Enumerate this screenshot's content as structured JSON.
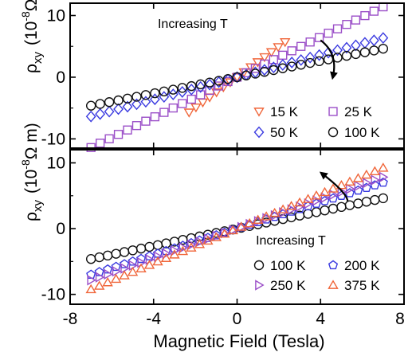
{
  "chart_data": [
    {
      "type": "scatter",
      "panel": "top",
      "xlabel": "Magnetic Field (Tesla)",
      "ylabel_parts": {
        "rho": "ρ",
        "sub": "xy",
        "open": "(10",
        "exp": "-8",
        "unit": "Ω m)"
      },
      "xlim": [
        -8,
        8
      ],
      "ylim": [
        -11.5,
        12
      ],
      "x_ticks": [
        "-8",
        "-4",
        "0",
        "4",
        "8"
      ],
      "y_ticks": [
        {
          "value": 10,
          "label": "10"
        },
        {
          "value": 0,
          "label": "0"
        },
        {
          "value": -10,
          "label": "-10"
        }
      ],
      "annotation": {
        "text": "Increasing T",
        "x": -3.8,
        "y": 8.0,
        "arrow_from": [
          4.0,
          6.0
        ],
        "arrow_to": [
          4.6,
          0.2
        ]
      },
      "legend_position": "bottom-right",
      "legend_columns": 2,
      "series": [
        {
          "name": "15 K",
          "marker": "triangle-down",
          "color": "#f0663a",
          "x_range": [
            -2.3,
            2.3
          ],
          "n_points": 15,
          "slope": 2.48,
          "legend_col": 0,
          "legend_row": 0
        },
        {
          "name": "25 K",
          "marker": "square",
          "color": "#9b4fc8",
          "x_range": [
            -7.0,
            7.0
          ],
          "n_points": 33,
          "slope": 1.63,
          "legend_col": 1,
          "legend_row": 0
        },
        {
          "name": "50 K",
          "marker": "diamond",
          "color": "#3a3ae0",
          "x_range": [
            -7.0,
            7.0
          ],
          "n_points": 33,
          "slope": 0.91,
          "legend_col": 0,
          "legend_row": 1
        },
        {
          "name": "100 K",
          "marker": "circle",
          "color": "#111111",
          "x_range": [
            -7.0,
            7.0
          ],
          "n_points": 33,
          "slope": 0.66,
          "legend_col": 1,
          "legend_row": 1
        }
      ]
    },
    {
      "type": "scatter",
      "panel": "bottom",
      "xlabel": "Magnetic Field (Tesla)",
      "ylabel_parts": {
        "rho": "ρ",
        "sub": "xy",
        "open": "(10",
        "exp": "-8",
        "unit": "Ω m)"
      },
      "xlim": [
        -8,
        8
      ],
      "ylim": [
        -11.5,
        12
      ],
      "x_ticks": [
        "-8",
        "-4",
        "0",
        "4",
        "8"
      ],
      "y_ticks": [
        {
          "value": 10,
          "label": "10"
        },
        {
          "value": 0,
          "label": "0"
        },
        {
          "value": -10,
          "label": "-10"
        }
      ],
      "annotation": {
        "text": "Increasing T",
        "x": 0.9,
        "y": -2.4,
        "arrow_from": [
          5.3,
          4.2
        ],
        "arrow_to": [
          4.1,
          8.3
        ]
      },
      "legend_position": "bottom-right",
      "legend_columns": 2,
      "series": [
        {
          "name": "100 K",
          "marker": "circle",
          "color": "#111111",
          "x_range": [
            -7.0,
            7.0
          ],
          "n_points": 36,
          "slope": 0.66,
          "legend_col": 0,
          "legend_row": 0
        },
        {
          "name": "200 K",
          "marker": "pentagon",
          "color": "#3a3ae0",
          "x_range": [
            -7.0,
            7.0
          ],
          "n_points": 36,
          "slope": 1.0,
          "legend_col": 1,
          "legend_row": 0
        },
        {
          "name": "250 K",
          "marker": "triangle-right",
          "color": "#9b4fc8",
          "x_range": [
            -7.0,
            7.0
          ],
          "n_points": 36,
          "slope": 1.12,
          "legend_col": 0,
          "legend_row": 1
        },
        {
          "name": "375 K",
          "marker": "triangle-up",
          "color": "#f0663a",
          "x_range": [
            -7.0,
            7.0
          ],
          "n_points": 36,
          "slope": 1.32,
          "legend_col": 1,
          "legend_row": 1
        }
      ]
    }
  ]
}
